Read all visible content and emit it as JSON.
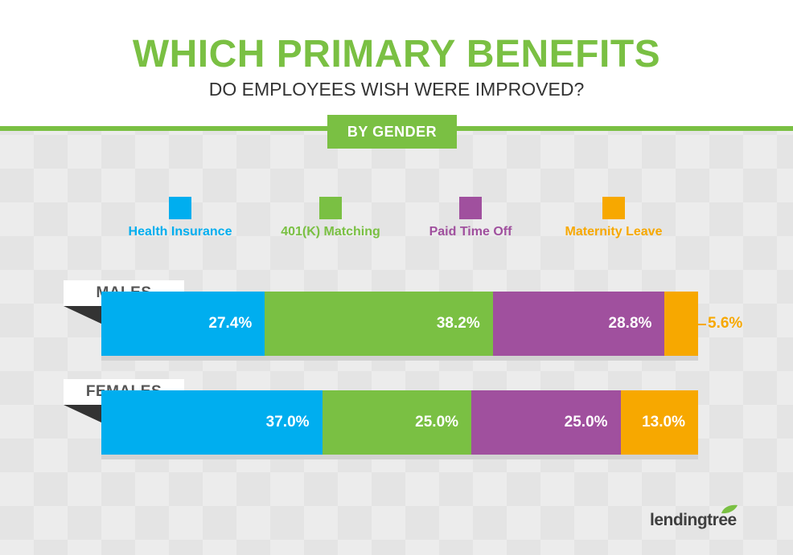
{
  "header": {
    "title": "WHICH PRIMARY BENEFITS",
    "subtitle": "DO EMPLOYEES WISH WERE IMPROVED?",
    "badge": "BY GENDER"
  },
  "colors": {
    "brand_green": "#7ac043",
    "health": "#00aeef",
    "matching": "#7ac043",
    "pto": "#a0509e",
    "maternity": "#f7a800"
  },
  "logo": {
    "text": "lendingtree",
    "icon": "leaf-icon"
  },
  "chart_data": {
    "type": "bar",
    "orientation": "horizontal",
    "stacked": true,
    "categories": [
      "MALES",
      "FEMALES"
    ],
    "series": [
      {
        "name": "Health Insurance",
        "color": "#00aeef",
        "values": [
          27.4,
          37.0
        ],
        "labels": [
          "27.4%",
          "37.0%"
        ]
      },
      {
        "name": "401(K) Matching",
        "color": "#7ac043",
        "values": [
          38.2,
          25.0
        ],
        "labels": [
          "38.2%",
          "25.0%"
        ]
      },
      {
        "name": "Paid Time Off",
        "color": "#a0509e",
        "values": [
          28.8,
          25.0
        ],
        "labels": [
          "28.8%",
          "25.0%"
        ]
      },
      {
        "name": "Maternity Leave",
        "color": "#f7a800",
        "values": [
          5.6,
          13.0
        ],
        "labels": [
          "5.6%",
          "13.0%"
        ]
      }
    ],
    "xlim": [
      0,
      100
    ],
    "grid": false,
    "legend": "top"
  }
}
